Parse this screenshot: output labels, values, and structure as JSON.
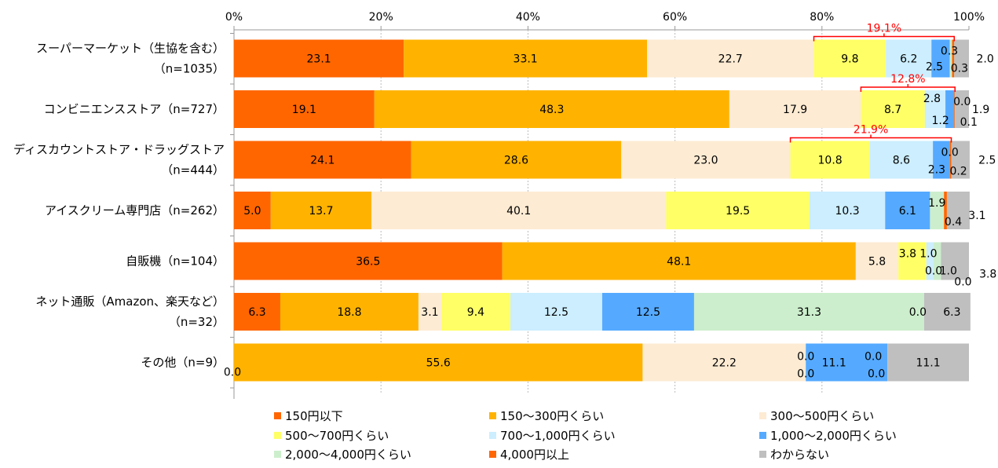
{
  "chart_data": {
    "type": "bar",
    "orientation": "horizontal",
    "stacked": true,
    "percent_axis": true,
    "xlim": [
      0,
      100
    ],
    "ticks": [
      "0%",
      "20%",
      "40%",
      "60%",
      "80%",
      "100%"
    ],
    "tick_values": [
      0,
      20,
      40,
      60,
      80,
      100
    ],
    "grid": true,
    "legend_position": "bottom",
    "categories": [
      [
        "スーパーマーケット（生協を含む）",
        "（n=1035）"
      ],
      [
        "コンビニエンスストア（n=727）"
      ],
      [
        "ディスカウントストア・ドラッグストア",
        "（n=444）"
      ],
      [
        "アイスクリーム専門店（n=262）"
      ],
      [
        "自販機（n=104）"
      ],
      [
        "ネット通販（Amazon、楽天など）",
        "（n=32）"
      ],
      [
        "その他（n=9）"
      ]
    ],
    "series": [
      {
        "name": "150円以下",
        "color": "#FF6600",
        "values": [
          23.1,
          19.1,
          24.1,
          5.0,
          36.5,
          6.3,
          0.0
        ]
      },
      {
        "name": "150〜300円くらい",
        "color": "#FFB300",
        "values": [
          33.1,
          48.3,
          28.6,
          13.7,
          48.1,
          18.8,
          55.6
        ]
      },
      {
        "name": "300〜500円くらい",
        "color": "#FDEBD3",
        "values": [
          22.7,
          17.9,
          23.0,
          40.1,
          5.8,
          3.1,
          22.2
        ]
      },
      {
        "name": "500〜700円くらい",
        "color": "#FFFF66",
        "values": [
          9.8,
          8.7,
          10.8,
          19.5,
          3.8,
          9.4,
          0.0
        ]
      },
      {
        "name": "700〜1,000円くらい",
        "color": "#CCEEFF",
        "values": [
          6.2,
          2.8,
          8.6,
          10.3,
          1.0,
          12.5,
          0.0
        ]
      },
      {
        "name": "1,000〜2,000円くらい",
        "color": "#55AAFF",
        "values": [
          2.5,
          1.2,
          2.3,
          6.1,
          0.0,
          12.5,
          11.1
        ]
      },
      {
        "name": "2,000〜4,000円くらい",
        "color": "#CCEECC",
        "values": [
          0.3,
          0.0,
          0.0,
          1.9,
          1.0,
          31.3,
          0.0
        ]
      },
      {
        "name": "4,000円以上",
        "color": "#FF6600",
        "values": [
          0.3,
          0.1,
          0.2,
          0.4,
          0.0,
          0.0,
          0.0
        ]
      },
      {
        "name": "わからない",
        "color": "#BFBFBF",
        "values": [
          2.0,
          1.9,
          2.5,
          3.1,
          3.8,
          6.3,
          11.1
        ]
      }
    ],
    "bar_labels": [
      [
        "23.1",
        "33.1",
        "22.7",
        "9.8",
        "6.2",
        "2.5",
        "0.3",
        "0.3",
        "2.0"
      ],
      [
        "19.1",
        "48.3",
        "17.9",
        "8.7",
        "2.8",
        "1.2",
        "0.0",
        "0.1",
        "1.9"
      ],
      [
        "24.1",
        "28.6",
        "23.0",
        "10.8",
        "8.6",
        "2.3",
        "0.0",
        "0.2",
        "2.5"
      ],
      [
        "5.0",
        "13.7",
        "40.1",
        "19.5",
        "10.3",
        "6.1",
        "1.9",
        "0.4",
        "3.1"
      ],
      [
        "36.5",
        "48.1",
        "5.8",
        "3.8",
        "1.0",
        "0.0",
        "1.0",
        "0.0",
        "3.8"
      ],
      [
        "6.3",
        "18.8",
        "3.1",
        "9.4",
        "12.5",
        "12.5",
        "31.3",
        "0.0",
        "6.3"
      ],
      [
        "0.0",
        "55.6",
        "22.2",
        "0.0",
        "0.0",
        "11.1",
        "0.0",
        "0.0",
        "11.1"
      ]
    ],
    "annotations": [
      {
        "row": 0,
        "text": "19.1%",
        "from_series": 3,
        "to_series": 7,
        "color": "#FF0000"
      },
      {
        "row": 1,
        "text": "12.8%",
        "from_series": 3,
        "to_series": 7,
        "color": "#FF0000"
      },
      {
        "row": 2,
        "text": "21.9%",
        "from_series": 3,
        "to_series": 7,
        "color": "#FF0000"
      }
    ]
  }
}
